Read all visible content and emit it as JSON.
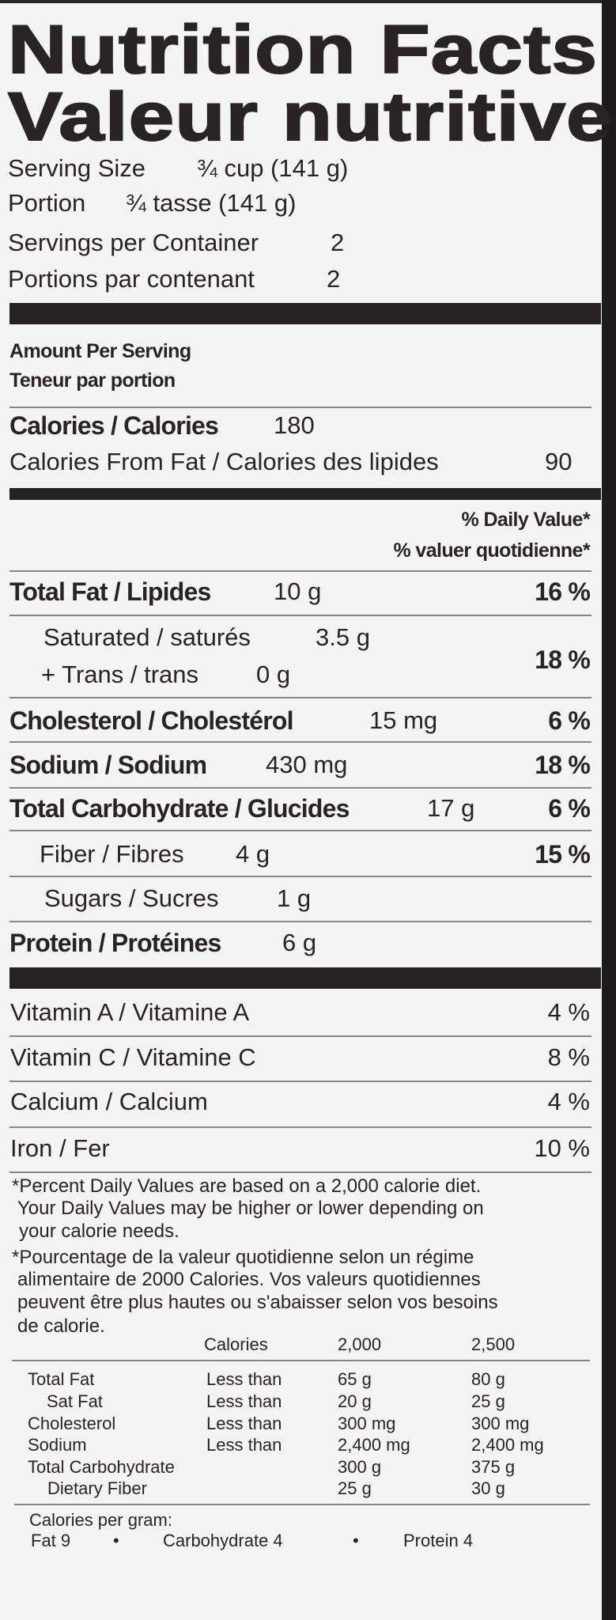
{
  "header": {
    "title_en": "Nutrition Facts",
    "title_fr": "Valeur nutritive"
  },
  "serving": {
    "size_label": "Serving Size",
    "size_value": "¾ cup (141 g)",
    "portion_label": "Portion",
    "portion_value": "¾ tasse (141 g)",
    "per_container_label": "Servings per Container",
    "per_container_value": "2",
    "par_contenant_label": "Portions par contenant",
    "par_contenant_value": "2"
  },
  "amount": {
    "en": "Amount Per Serving",
    "fr": "Teneur par portion",
    "calories_label": "Calories / Calories",
    "calories_value": "180",
    "fat_cal_label": "Calories From Fat / Calories des lipides",
    "fat_cal_value": "90"
  },
  "dv_header": {
    "en": "% Daily Value*",
    "fr": "% valuer quotidienne*"
  },
  "nutrients": {
    "total_fat": {
      "label": "Total Fat / Lipides",
      "amount": "10 g",
      "dv": "16 %"
    },
    "saturated": {
      "label": "Saturated / saturés",
      "amount": "3.5 g"
    },
    "trans": {
      "label": "+ Trans / trans",
      "amount": "0 g"
    },
    "sat_trans_dv": "18 %",
    "cholesterol": {
      "label": "Cholesterol / Cholestérol",
      "amount": "15 mg",
      "dv": "6 %"
    },
    "sodium": {
      "label": "Sodium / Sodium",
      "amount": "430 mg",
      "dv": "18 %"
    },
    "carbohydrate": {
      "label": "Total Carbohydrate / Glucides",
      "amount": "17 g",
      "dv": "6 %"
    },
    "fiber": {
      "label": "Fiber / Fibres",
      "amount": "4 g",
      "dv": "15 %"
    },
    "sugars": {
      "label": "Sugars / Sucres",
      "amount": "1 g"
    },
    "protein": {
      "label": "Protein / Protéines",
      "amount": "6 g"
    }
  },
  "vitamins": [
    {
      "label": "Vitamin A / Vitamine A",
      "dv": "4 %"
    },
    {
      "label": "Vitamin C / Vitamine C",
      "dv": "8 %"
    },
    {
      "label": "Calcium / Calcium",
      "dv": "4 %"
    },
    {
      "label": "Iron / Fer",
      "dv": "10 %"
    }
  ],
  "footnote_en": [
    "*Percent Daily Values are based on a 2,000 calorie diet.",
    "Your Daily Values may be higher or lower depending on",
    "your calorie needs."
  ],
  "footnote_fr": [
    "*Pourcentage de la valeur quotidienne selon un régime",
    "alimentaire de 2000 Calories.  Vos valeurs quotidiennes",
    "peuvent être plus hautes ou s'abaisser selon vos besoins",
    "de calorie."
  ],
  "reference_table": {
    "header": [
      "Calories",
      "2,000",
      "2,500"
    ],
    "rows": [
      {
        "name": "Total Fat",
        "qualifier": "Less than",
        "v2000": "65 g",
        "v2500": "80 g"
      },
      {
        "name": "Sat Fat",
        "qualifier": "Less than",
        "v2000": "20 g",
        "v2500": "25 g"
      },
      {
        "name": "Cholesterol",
        "qualifier": "Less than",
        "v2000": "300 mg",
        "v2500": "300 mg"
      },
      {
        "name": "Sodium",
        "qualifier": "Less than",
        "v2000": "2,400 mg",
        "v2500": "2,400 mg"
      },
      {
        "name": "Total Carbohydrate",
        "qualifier": "",
        "v2000": "300 g",
        "v2500": "375 g"
      },
      {
        "name": "Dietary Fiber",
        "qualifier": "",
        "v2000": "25 g",
        "v2500": "30 g"
      }
    ]
  },
  "calories_per_gram": {
    "label": "Calories per gram:",
    "fat": "Fat 9",
    "carbohydrate": "Carbohydrate  4",
    "protein": "Protein 4",
    "separator": "•"
  }
}
